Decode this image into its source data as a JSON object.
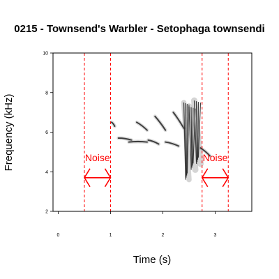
{
  "chart_data": {
    "type": "spectrogram",
    "title": "0215 - Townsend's Warbler - Setophaga townsendi",
    "xlabel": "Time (s)",
    "ylabel": "Frequency (kHz)",
    "xlim": [
      -0.1,
      3.7
    ],
    "ylim": [
      2,
      10
    ],
    "xticks": [
      "0",
      "1",
      "2",
      "3"
    ],
    "yticks": [
      "2",
      "4",
      "6",
      "8",
      "10"
    ],
    "noise_windows": [
      {
        "label": "Noise",
        "start": 0.5,
        "end": 1.0
      },
      {
        "label": "Noise",
        "start": 2.75,
        "end": 3.25
      }
    ],
    "marker_frequency": 3.7,
    "annotation_color": "#ff0000",
    "song_elements": [
      {
        "type": "tone",
        "t0": 1.02,
        "t1": 1.08,
        "f0": 6.5,
        "f1": 6.3
      },
      {
        "type": "tone",
        "t0": 1.15,
        "t1": 1.4,
        "f0": 5.7,
        "f1": 5.6
      },
      {
        "type": "tone",
        "t0": 1.35,
        "t1": 1.7,
        "f0": 5.5,
        "f1": 5.5
      },
      {
        "type": "tone",
        "t0": 1.5,
        "t1": 1.7,
        "f0": 6.5,
        "f1": 6.1
      },
      {
        "type": "tone",
        "t0": 1.72,
        "t1": 1.92,
        "f0": 5.6,
        "f1": 5.4
      },
      {
        "type": "tone",
        "t0": 1.85,
        "t1": 2.05,
        "f0": 6.8,
        "f1": 6.1
      },
      {
        "type": "tone",
        "t0": 2.05,
        "t1": 2.3,
        "f0": 5.5,
        "f1": 5.3
      },
      {
        "type": "tone",
        "t0": 2.2,
        "t1": 2.4,
        "f0": 7.0,
        "f1": 6.2
      },
      {
        "type": "sweep",
        "t0": 2.4,
        "t1": 2.5,
        "f0": 7.5,
        "f1": 3.6
      },
      {
        "type": "sweep",
        "t0": 2.5,
        "t1": 2.62,
        "f0": 7.3,
        "f1": 4.1
      },
      {
        "type": "sweep",
        "t0": 2.6,
        "t1": 2.72,
        "f0": 7.6,
        "f1": 4.4
      },
      {
        "type": "tone",
        "t0": 2.72,
        "t1": 2.9,
        "f0": 5.2,
        "f1": 4.8
      }
    ]
  }
}
